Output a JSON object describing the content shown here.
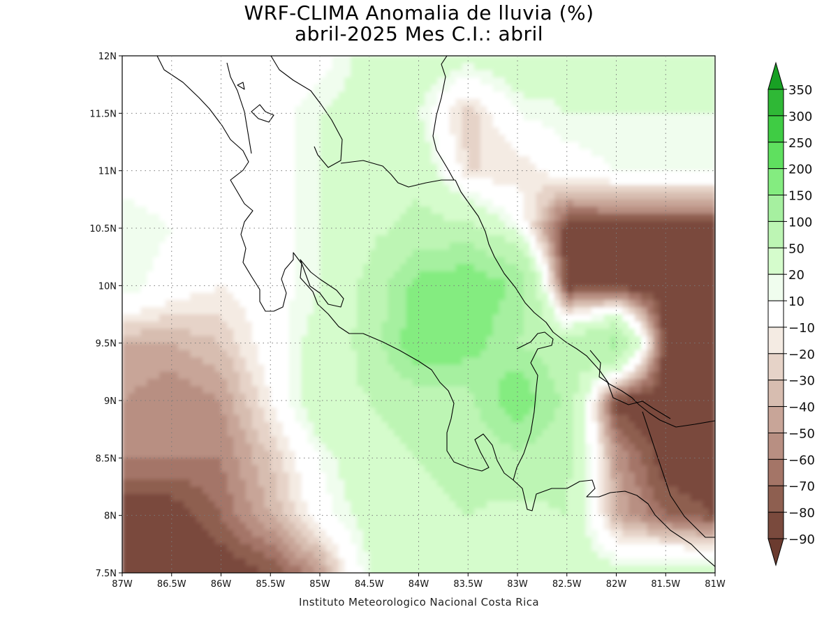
{
  "title": {
    "line1": "WRF-CLIMA Anomalia de lluvia (%)",
    "line2": "abril-2025 Mes C.I.: abril"
  },
  "footer": "Instituto Meteorologico Nacional Costa Rica",
  "colors": {
    "dry_extreme": "#6b3b2f",
    "wet_extreme": "#1e9e28",
    "neutral": "#ffffff"
  },
  "chart_data": {
    "type": "heatmap",
    "title": "WRF-CLIMA Anomalia de lluvia (%)",
    "subtitle": "abril-2025 Mes C.I.: abril",
    "xlabel": "",
    "ylabel": "",
    "xlim": [
      -87,
      -81
    ],
    "ylim": [
      7.5,
      12
    ],
    "x_ticks": [
      -87,
      -86.5,
      -86,
      -85.5,
      -85,
      -84.5,
      -84,
      -83.5,
      -83,
      -82.5,
      -82,
      -81.5,
      -81
    ],
    "x_tick_labels": [
      "87W",
      "86.5W",
      "86W",
      "85.5W",
      "85W",
      "84.5W",
      "84W",
      "83.5W",
      "83W",
      "82.5W",
      "82W",
      "81.5W",
      "81W"
    ],
    "y_ticks": [
      7.5,
      8,
      8.5,
      9,
      9.5,
      10,
      10.5,
      11,
      11.5,
      12
    ],
    "y_tick_labels": [
      "7.5N",
      "8N",
      "8.5N",
      "9N",
      "9.5N",
      "10N",
      "10.5N",
      "11N",
      "11.5N",
      "12N"
    ],
    "grid": true,
    "legend": {
      "placement": "right",
      "label_values": [
        350,
        300,
        250,
        200,
        150,
        100,
        50,
        20,
        10,
        -10,
        -20,
        -30,
        -40,
        -50,
        -60,
        -70,
        -80,
        -90
      ],
      "labels": [
        "350",
        "300",
        "250",
        "200",
        "150",
        "100",
        "50",
        "20",
        "10",
        "−10",
        "−20",
        "−30",
        "−40",
        "−50",
        "−60",
        "−70",
        "−80",
        "−90"
      ],
      "colors": [
        "#18a024",
        "#2fb836",
        "#3fcc44",
        "#5fe05f",
        "#84ec80",
        "#a6f0a0",
        "#bdf5b4",
        "#d5fccc",
        "#f0fdee",
        "#ffffff",
        "#f4ebe3",
        "#e6d3c8",
        "#d7bdb0",
        "#c8a598",
        "#b88f82",
        "#a47567",
        "#8e5f50",
        "#7a4a3d",
        "#6b3b2f"
      ]
    },
    "value_grid": {
      "lon": [
        -87,
        -86.5,
        -86,
        -85.5,
        -85,
        -84.5,
        -84,
        -83.5,
        -83,
        -82.5,
        -82,
        -81.5,
        -81
      ],
      "lat": [
        12,
        11.5,
        11,
        10.5,
        10,
        9.5,
        9,
        8.5,
        8,
        7.5
      ],
      "values": [
        [
          0,
          0,
          0,
          0,
          0,
          30,
          40,
          30,
          40,
          30,
          30,
          30,
          30
        ],
        [
          0,
          0,
          0,
          0,
          20,
          30,
          20,
          -30,
          10,
          20,
          20,
          20,
          20
        ],
        [
          0,
          0,
          0,
          0,
          20,
          40,
          40,
          -20,
          -20,
          0,
          10,
          10,
          10
        ],
        [
          20,
          10,
          0,
          0,
          20,
          40,
          60,
          60,
          10,
          -90,
          -90,
          -90,
          -90
        ],
        [
          20,
          0,
          -10,
          0,
          20,
          60,
          170,
          200,
          140,
          -90,
          -90,
          -90,
          -90
        ],
        [
          -40,
          -40,
          -30,
          0,
          30,
          60,
          200,
          180,
          100,
          60,
          120,
          -90,
          -90
        ],
        [
          -50,
          -60,
          -50,
          -10,
          40,
          50,
          60,
          80,
          200,
          80,
          -90,
          -90,
          -90
        ],
        [
          -60,
          -60,
          -60,
          -30,
          10,
          40,
          50,
          60,
          80,
          60,
          -50,
          -90,
          -90
        ],
        [
          -90,
          -90,
          -70,
          -40,
          0,
          30,
          40,
          50,
          40,
          50,
          -40,
          -70,
          -80
        ],
        [
          -90,
          -90,
          -90,
          -80,
          -50,
          20,
          30,
          40,
          30,
          40,
          30,
          40,
          40
        ]
      ]
    }
  }
}
